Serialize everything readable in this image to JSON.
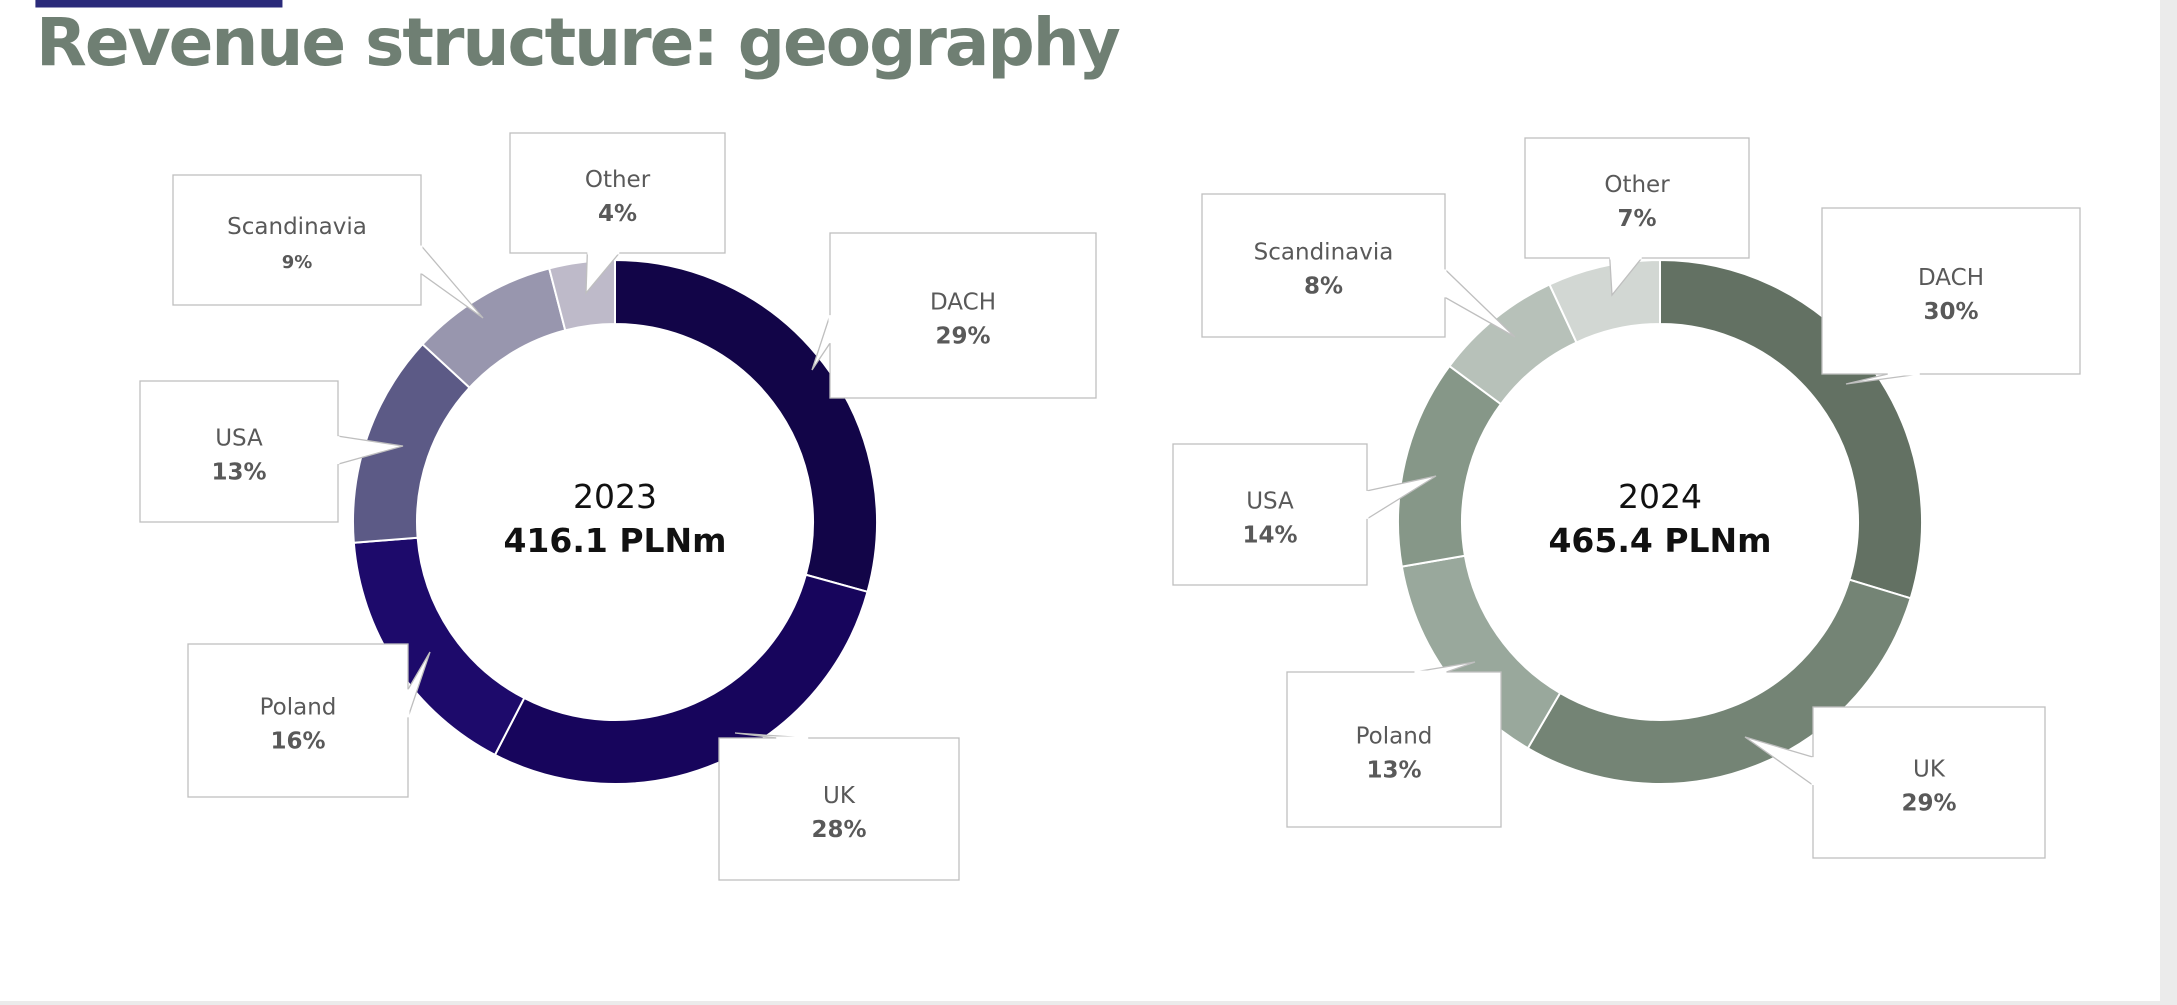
{
  "slide": {
    "title": "Revenue structure: geography",
    "title_color": "#6f7f73",
    "clipped_title_color": "#2a2a7a"
  },
  "chart_data": [
    {
      "type": "donut",
      "center_label": "2023",
      "center_value": "416.1 PLNm",
      "categories": [
        "DACH",
        "UK",
        "Poland",
        "USA",
        "Scandinavia",
        "Other"
      ],
      "values": [
        29,
        28,
        16,
        13,
        9,
        4
      ],
      "value_labels": [
        "29%",
        "28%",
        "16%",
        "13%",
        "9%",
        "4%"
      ],
      "colors": [
        "#120548",
        "#17055c",
        "#1d0a6b",
        "#5c5a86",
        "#9896ae",
        "#bebac9"
      ]
    },
    {
      "type": "donut",
      "center_label": "2024",
      "center_value": "465.4 PLNm",
      "categories": [
        "DACH",
        "UK",
        "Poland",
        "USA",
        "Scandinavia",
        "Other"
      ],
      "values": [
        30,
        29,
        13,
        14,
        8,
        7
      ],
      "value_labels": [
        "30%",
        "29%",
        "13%",
        "14%",
        "8%",
        "7%"
      ],
      "colors": [
        "#637163",
        "#748475",
        "#869788",
        "#99a89c",
        "#b7c1b9",
        "#d2d7d3"
      ]
    }
  ]
}
